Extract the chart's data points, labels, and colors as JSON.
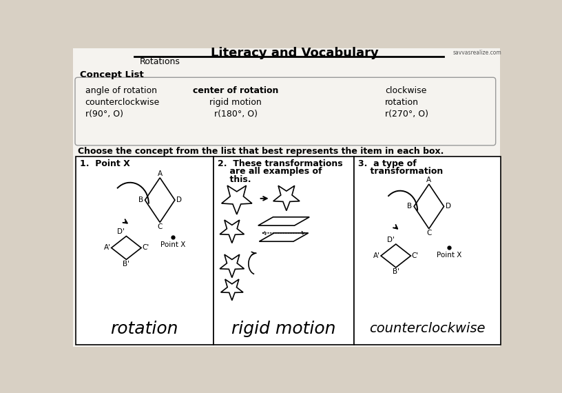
{
  "title": "Literacy and Vocabulary",
  "subtitle": "Rotations",
  "bg_color": "#d8d0c4",
  "paper_color": "#f5f3ef",
  "concept_list_label": "Concept List",
  "col1_items": [
    "angle of rotation",
    "counterclockwise",
    "r(90°, O)"
  ],
  "col2_items": [
    "center of rotation",
    "rigid motion",
    "r(180°, O)"
  ],
  "col3_items": [
    "clockwise",
    "rotation",
    "r(270°, O)"
  ],
  "instruction": "Choose the concept from the list that best represents the item in each box.",
  "answer1": "rotation",
  "answer2": "rigid motion",
  "answer3": "counterclockwise",
  "savvas": "savvasrealize.com"
}
